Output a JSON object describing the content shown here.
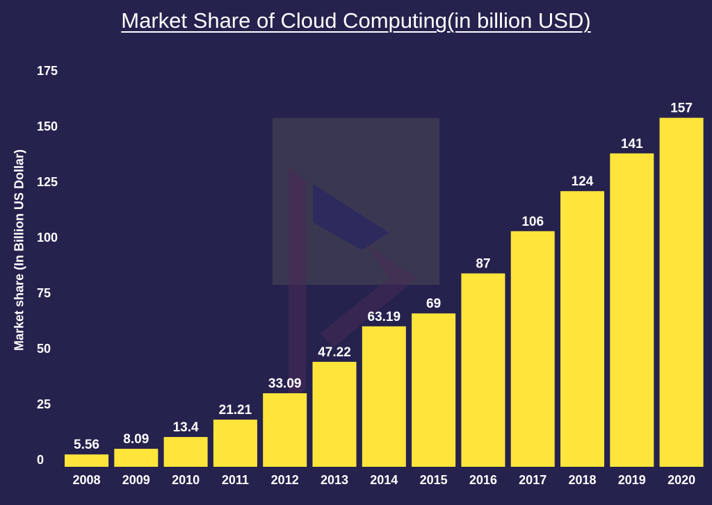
{
  "chart_data": {
    "type": "bar",
    "title": "Market Share of Cloud Computing(in billion USD)",
    "xlabel": "",
    "ylabel": "Market share (In Billion US Dollar)",
    "categories": [
      "2008",
      "2009",
      "2010",
      "2011",
      "2012",
      "2013",
      "2014",
      "2015",
      "2016",
      "2017",
      "2018",
      "2019",
      "2020"
    ],
    "values": [
      5.56,
      8.09,
      13.4,
      21.21,
      33.09,
      47.22,
      63.19,
      69,
      87,
      106,
      124,
      141,
      157
    ],
    "data_labels": [
      "5.56",
      "8.09",
      "13.4",
      "21.21",
      "33.09",
      "47.22",
      "63.19",
      "69",
      "87",
      "106",
      "124",
      "141",
      "157"
    ],
    "yticks": [
      0,
      25,
      50,
      75,
      100,
      125,
      150,
      175
    ],
    "ylim": [
      0,
      175
    ],
    "grid": false,
    "legend": "none",
    "colors": {
      "background": "#25224e",
      "bar": "#ffe53b",
      "text": "#ffffff"
    }
  }
}
